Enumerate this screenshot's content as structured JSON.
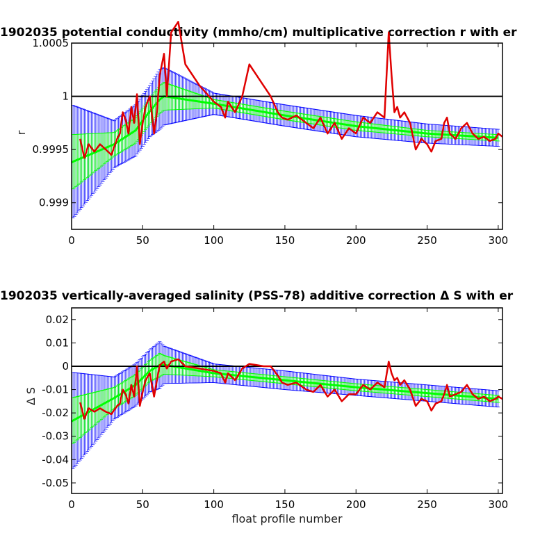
{
  "colors": {
    "errorbar_outer": "#0000ff",
    "errorbar_inner": "#00ff00",
    "fit": "#00ff00",
    "measured": "#e00000",
    "reference": "#000000",
    "axes": "#000000",
    "background": "#ffffff"
  },
  "chart_data": [
    {
      "type": "line",
      "title": "1902035 potential conductivity (mmho/cm) multiplicative correction r with er",
      "xlabel": "",
      "ylabel": "r",
      "xlim": [
        0,
        303
      ],
      "ylim": [
        0.99875,
        1.0005
      ],
      "xticks": [
        0,
        50,
        100,
        150,
        200,
        250,
        300
      ],
      "xtick_labels": [
        "0",
        "50",
        "100",
        "150",
        "200",
        "250",
        "300"
      ],
      "yticks": [
        0.999,
        0.9995,
        1,
        1.0005
      ],
      "ytick_labels": [
        "0.999",
        "0.9995",
        "1",
        "1.0005"
      ],
      "reference_line": 1,
      "grid": false,
      "series": [
        {
          "role": "fit_with_error_band_2sigma",
          "x": [
            0,
            30,
            45,
            55,
            62,
            65,
            100,
            150,
            200,
            250,
            300
          ],
          "center": [
            0.99938,
            0.99955,
            0.99968,
            0.99986,
            0.99997,
            1.0,
            0.99993,
            0.99982,
            0.99972,
            0.99965,
            0.99961
          ],
          "half_width": [
            0.00054,
            0.00022,
            0.00024,
            0.00024,
            0.00028,
            0.00027,
            0.0001,
            0.0001,
            0.0001,
            9e-05,
            8e-05
          ]
        },
        {
          "role": "fit_with_error_band_1sigma",
          "x": [
            0,
            30,
            45,
            55,
            62,
            65,
            100,
            150,
            200,
            250,
            300
          ],
          "center": [
            0.99938,
            0.99955,
            0.99968,
            0.99986,
            0.99997,
            1.0,
            0.99993,
            0.99982,
            0.99972,
            0.99965,
            0.99961
          ],
          "half_width": [
            0.00026,
            0.00011,
            0.00012,
            0.00012,
            0.00013,
            0.00013,
            4e-05,
            4e-05,
            4e-05,
            3e-05,
            3e-05
          ]
        },
        {
          "role": "measured_correction",
          "x": [
            6,
            9,
            12,
            16,
            20,
            24,
            28,
            32,
            34,
            36,
            38,
            40,
            42,
            44,
            46,
            48,
            49,
            50,
            52,
            55,
            58,
            60,
            62,
            65,
            67,
            70,
            75,
            80,
            90,
            100,
            105,
            108,
            110,
            115,
            120,
            125,
            130,
            135,
            140,
            145,
            148,
            152,
            158,
            165,
            170,
            175,
            180,
            185,
            190,
            195,
            200,
            205,
            210,
            215,
            220,
            223,
            225,
            227,
            229,
            231,
            234,
            238,
            242,
            246,
            250,
            253,
            256,
            260,
            262,
            264,
            266,
            270,
            274,
            278,
            282,
            286,
            290,
            294,
            298,
            300,
            303
          ],
          "y": [
            0.9996,
            0.99942,
            0.99955,
            0.99948,
            0.99955,
            0.9995,
            0.99945,
            0.9996,
            0.99965,
            0.99985,
            0.99978,
            0.99965,
            0.9999,
            0.99975,
            1.00002,
            0.99955,
            0.99965,
            0.99975,
            0.9999,
            1.0,
            0.99965,
            0.99985,
            1.0002,
            1.0004,
            1.0,
            1.0006,
            1.0007,
            1.0003,
            1.0001,
            0.99995,
            0.9999,
            0.9998,
            0.99995,
            0.99985,
            1.0,
            1.0003,
            1.0002,
            1.0001,
            1.0,
            0.99985,
            0.9998,
            0.99978,
            0.99982,
            0.99975,
            0.9997,
            0.9998,
            0.99965,
            0.99975,
            0.9996,
            0.9997,
            0.99965,
            0.9998,
            0.99975,
            0.99985,
            0.9998,
            1.0006,
            1.0002,
            0.99985,
            0.9999,
            0.9998,
            0.99985,
            0.99975,
            0.9995,
            0.9996,
            0.99955,
            0.99948,
            0.99958,
            0.9996,
            0.99975,
            0.9998,
            0.99965,
            0.9996,
            0.9997,
            0.99975,
            0.99965,
            0.9996,
            0.99962,
            0.99958,
            0.9996,
            0.99965,
            0.99962
          ]
        }
      ]
    },
    {
      "type": "line",
      "title": "1902035 vertically-averaged salinity (PSS-78) additive correction Δ S with er",
      "xlabel": "float profile number",
      "ylabel": "Δ S",
      "xlim": [
        0,
        303
      ],
      "ylim": [
        -0.0545,
        0.025
      ],
      "xticks": [
        0,
        50,
        100,
        150,
        200,
        250,
        300
      ],
      "xtick_labels": [
        "0",
        "50",
        "100",
        "150",
        "200",
        "250",
        "300"
      ],
      "yticks": [
        -0.05,
        -0.04,
        -0.03,
        -0.02,
        -0.01,
        0,
        0.01,
        0.02
      ],
      "ytick_labels": [
        "-0.05",
        "-0.04",
        "-0.03",
        "-0.02",
        "-0.01",
        "0",
        "0.01",
        "0.02"
      ],
      "reference_line": 0,
      "grid": false,
      "series": [
        {
          "role": "fit_with_error_band_2sigma",
          "x": [
            0,
            30,
            45,
            55,
            62,
            65,
            100,
            150,
            200,
            250,
            300
          ],
          "center": [
            -0.0236,
            -0.0136,
            -0.008,
            -0.002,
            0.0005,
            0.0006,
            -0.003,
            -0.006,
            -0.009,
            -0.0115,
            -0.014
          ],
          "half_width": [
            0.021,
            0.009,
            0.009,
            0.009,
            0.01,
            0.008,
            0.004,
            0.004,
            0.0035,
            0.0035,
            0.0035
          ]
        },
        {
          "role": "fit_with_error_band_1sigma",
          "x": [
            0,
            30,
            45,
            55,
            62,
            65,
            100,
            150,
            200,
            250,
            300
          ],
          "center": [
            -0.0236,
            -0.0136,
            -0.008,
            -0.002,
            0.0005,
            0.0006,
            -0.003,
            -0.006,
            -0.009,
            -0.0115,
            -0.014
          ],
          "half_width": [
            0.01,
            0.0045,
            0.0045,
            0.0045,
            0.005,
            0.004,
            0.0015,
            0.0015,
            0.0015,
            0.0015,
            0.0015
          ]
        },
        {
          "role": "measured_correction",
          "x": [
            6,
            9,
            12,
            16,
            20,
            24,
            28,
            32,
            34,
            36,
            38,
            40,
            42,
            44,
            46,
            48,
            49,
            50,
            52,
            55,
            58,
            60,
            62,
            65,
            67,
            70,
            75,
            80,
            90,
            100,
            105,
            108,
            110,
            115,
            120,
            125,
            130,
            135,
            140,
            145,
            148,
            152,
            158,
            165,
            170,
            175,
            180,
            185,
            190,
            195,
            200,
            205,
            210,
            215,
            220,
            223,
            225,
            227,
            229,
            231,
            234,
            238,
            242,
            246,
            250,
            253,
            256,
            260,
            262,
            264,
            266,
            270,
            274,
            278,
            282,
            286,
            290,
            294,
            298,
            300,
            303
          ],
          "y": [
            -0.0155,
            -0.0225,
            -0.018,
            -0.0195,
            -0.018,
            -0.0195,
            -0.0205,
            -0.017,
            -0.016,
            -0.01,
            -0.012,
            -0.016,
            -0.008,
            -0.013,
            0.0,
            -0.017,
            -0.014,
            -0.011,
            -0.006,
            -0.003,
            -0.013,
            -0.006,
            0.0005,
            0.002,
            -0.001,
            0.002,
            0.003,
            0.0,
            -0.001,
            -0.002,
            -0.003,
            -0.007,
            -0.003,
            -0.006,
            -0.001,
            0.001,
            0.0005,
            0.0,
            0.0,
            -0.004,
            -0.007,
            -0.008,
            -0.007,
            -0.01,
            -0.011,
            -0.008,
            -0.013,
            -0.01,
            -0.015,
            -0.012,
            -0.012,
            -0.008,
            -0.01,
            -0.007,
            -0.009,
            0.002,
            -0.003,
            -0.006,
            -0.005,
            -0.008,
            -0.006,
            -0.01,
            -0.017,
            -0.014,
            -0.015,
            -0.019,
            -0.016,
            -0.015,
            -0.012,
            -0.008,
            -0.013,
            -0.012,
            -0.011,
            -0.008,
            -0.012,
            -0.014,
            -0.013,
            -0.015,
            -0.014,
            -0.013,
            -0.014
          ]
        }
      ]
    }
  ]
}
